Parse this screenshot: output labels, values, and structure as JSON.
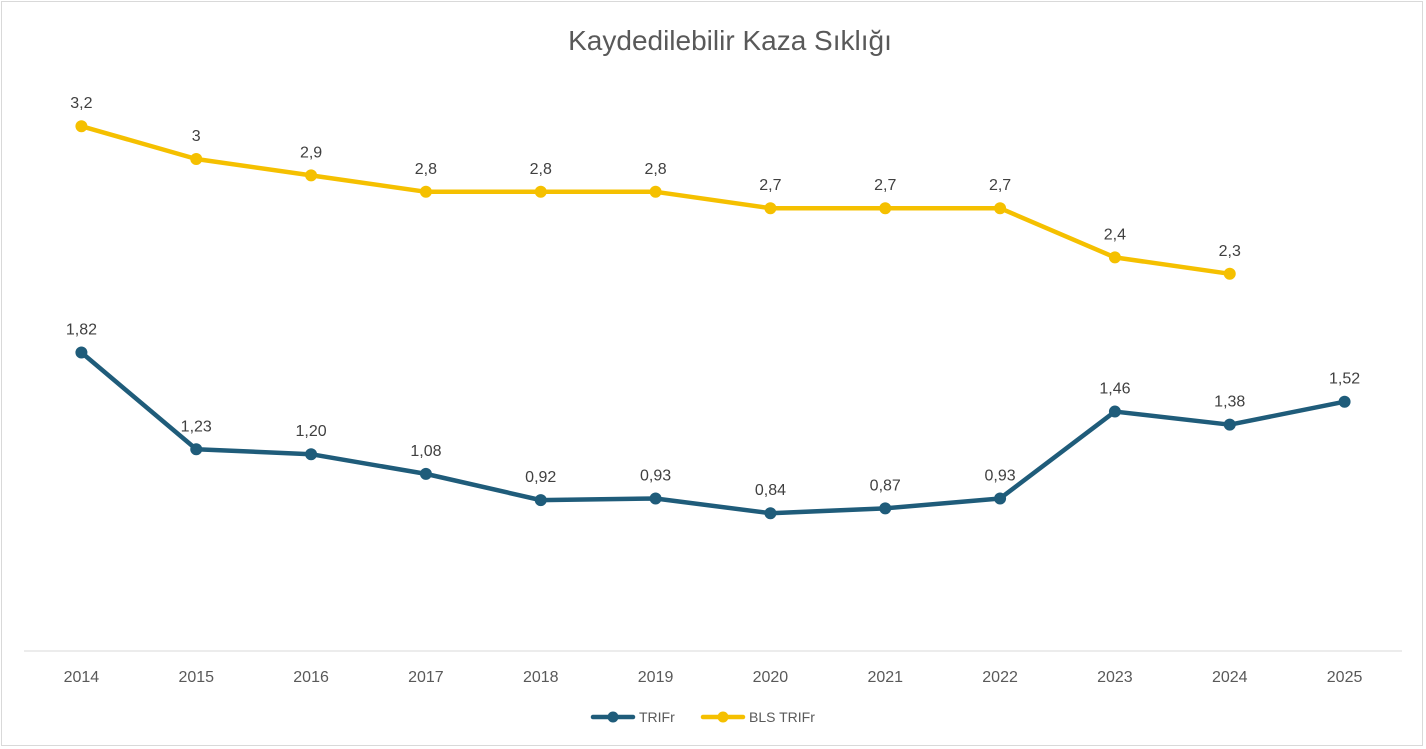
{
  "chart_data": {
    "type": "line",
    "title": "Kaydedilebilir Kaza Sıklığı",
    "xlabel": "",
    "ylabel": "",
    "categories": [
      "2014",
      "2015",
      "2016",
      "2017",
      "2018",
      "2019",
      "2020",
      "2021",
      "2022",
      "2023",
      "2024",
      "2025"
    ],
    "series": [
      {
        "name": "TRIFr",
        "color": "#1f5c7a",
        "values": [
          1.82,
          1.23,
          1.2,
          1.08,
          0.92,
          0.93,
          0.84,
          0.87,
          0.93,
          1.46,
          1.38,
          1.52
        ],
        "labels": [
          "1,82",
          "1,23",
          "1,20",
          "1,08",
          "0,92",
          "0,93",
          "0,84",
          "0,87",
          "0,93",
          "1,46",
          "1,38",
          "1,52"
        ]
      },
      {
        "name": "BLS TRIFr",
        "color": "#f5c000",
        "values": [
          3.2,
          3.0,
          2.9,
          2.8,
          2.8,
          2.8,
          2.7,
          2.7,
          2.7,
          2.4,
          2.3,
          null
        ],
        "labels": [
          "3,2",
          "3",
          "2,9",
          "2,8",
          "2,8",
          "2,8",
          "2,7",
          "2,7",
          "2,7",
          "2,4",
          "2,3",
          ""
        ]
      }
    ],
    "ylim": [
      0,
      4
    ],
    "grid": false,
    "legend": "bottom-center"
  }
}
